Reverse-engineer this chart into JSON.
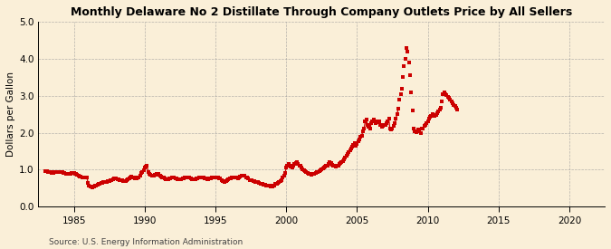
{
  "title": "Monthly Delaware No 2 Distillate Through Company Outlets Price by All Sellers",
  "ylabel": "Dollars per Gallon",
  "source": "Source: U.S. Energy Information Administration",
  "background_color": "#faefd8",
  "line_color": "#cc0000",
  "xlim": [
    1982.5,
    2022.5
  ],
  "ylim": [
    0.0,
    5.0
  ],
  "yticks": [
    0.0,
    1.0,
    2.0,
    3.0,
    4.0,
    5.0
  ],
  "xticks": [
    1985,
    1990,
    1995,
    2000,
    2005,
    2010,
    2015,
    2020
  ],
  "connected_data": [
    [
      1983.0,
      0.97
    ],
    [
      1983.08,
      0.96
    ],
    [
      1983.17,
      0.95
    ],
    [
      1983.25,
      0.94
    ],
    [
      1983.33,
      0.93
    ],
    [
      1983.42,
      0.92
    ],
    [
      1983.5,
      0.93
    ],
    [
      1983.58,
      0.92
    ],
    [
      1983.67,
      0.93
    ],
    [
      1983.75,
      0.94
    ],
    [
      1983.83,
      0.94
    ],
    [
      1983.92,
      0.95
    ],
    [
      1984.0,
      0.95
    ],
    [
      1984.08,
      0.94
    ],
    [
      1984.17,
      0.93
    ],
    [
      1984.25,
      0.92
    ],
    [
      1984.33,
      0.91
    ],
    [
      1984.42,
      0.9
    ],
    [
      1984.5,
      0.89
    ],
    [
      1984.58,
      0.89
    ],
    [
      1984.67,
      0.89
    ],
    [
      1984.75,
      0.9
    ],
    [
      1984.83,
      0.91
    ],
    [
      1984.92,
      0.92
    ],
    [
      1985.0,
      0.91
    ],
    [
      1985.08,
      0.9
    ],
    [
      1985.17,
      0.89
    ],
    [
      1985.25,
      0.86
    ],
    [
      1985.33,
      0.84
    ],
    [
      1985.42,
      0.82
    ],
    [
      1985.5,
      0.81
    ],
    [
      1985.58,
      0.8
    ],
    [
      1985.67,
      0.8
    ],
    [
      1985.75,
      0.8
    ],
    [
      1985.83,
      0.8
    ],
    [
      1985.92,
      0.79
    ],
    [
      1986.0,
      0.65
    ],
    [
      1986.08,
      0.58
    ],
    [
      1986.17,
      0.55
    ],
    [
      1986.25,
      0.54
    ],
    [
      1986.33,
      0.53
    ],
    [
      1986.42,
      0.55
    ],
    [
      1986.5,
      0.57
    ],
    [
      1986.58,
      0.58
    ],
    [
      1986.67,
      0.6
    ],
    [
      1986.75,
      0.62
    ],
    [
      1986.83,
      0.63
    ],
    [
      1986.92,
      0.64
    ],
    [
      1987.0,
      0.65
    ],
    [
      1987.08,
      0.66
    ],
    [
      1987.17,
      0.67
    ],
    [
      1987.25,
      0.68
    ],
    [
      1987.33,
      0.68
    ],
    [
      1987.42,
      0.69
    ],
    [
      1987.5,
      0.7
    ],
    [
      1987.58,
      0.71
    ],
    [
      1987.67,
      0.73
    ],
    [
      1987.75,
      0.74
    ],
    [
      1987.83,
      0.76
    ],
    [
      1987.92,
      0.77
    ],
    [
      1988.0,
      0.76
    ],
    [
      1988.08,
      0.75
    ],
    [
      1988.17,
      0.74
    ],
    [
      1988.25,
      0.73
    ],
    [
      1988.33,
      0.72
    ],
    [
      1988.42,
      0.71
    ],
    [
      1988.5,
      0.7
    ],
    [
      1988.58,
      0.69
    ],
    [
      1988.67,
      0.7
    ],
    [
      1988.75,
      0.72
    ],
    [
      1988.83,
      0.74
    ],
    [
      1988.92,
      0.77
    ],
    [
      1989.0,
      0.8
    ],
    [
      1989.08,
      0.82
    ],
    [
      1989.17,
      0.8
    ],
    [
      1989.25,
      0.78
    ],
    [
      1989.33,
      0.77
    ],
    [
      1989.42,
      0.76
    ],
    [
      1989.5,
      0.78
    ],
    [
      1989.58,
      0.8
    ],
    [
      1989.67,
      0.85
    ],
    [
      1989.75,
      0.92
    ],
    [
      1989.83,
      0.95
    ],
    [
      1989.92,
      0.98
    ],
    [
      1990.0,
      1.05
    ],
    [
      1990.08,
      1.08
    ],
    [
      1990.17,
      1.1
    ],
    [
      1990.25,
      0.95
    ],
    [
      1990.33,
      0.9
    ],
    [
      1990.42,
      0.86
    ],
    [
      1990.5,
      0.84
    ],
    [
      1990.58,
      0.83
    ],
    [
      1990.67,
      0.85
    ],
    [
      1990.75,
      0.87
    ],
    [
      1990.83,
      0.88
    ],
    [
      1990.92,
      0.87
    ],
    [
      1991.0,
      0.88
    ],
    [
      1991.08,
      0.85
    ],
    [
      1991.17,
      0.82
    ],
    [
      1991.25,
      0.8
    ],
    [
      1991.33,
      0.78
    ],
    [
      1991.42,
      0.76
    ],
    [
      1991.5,
      0.75
    ],
    [
      1991.58,
      0.74
    ],
    [
      1991.67,
      0.75
    ],
    [
      1991.75,
      0.76
    ],
    [
      1991.83,
      0.77
    ],
    [
      1991.92,
      0.78
    ],
    [
      1992.0,
      0.79
    ],
    [
      1992.08,
      0.78
    ],
    [
      1992.17,
      0.77
    ],
    [
      1992.25,
      0.76
    ],
    [
      1992.33,
      0.75
    ],
    [
      1992.42,
      0.74
    ],
    [
      1992.5,
      0.74
    ],
    [
      1992.58,
      0.75
    ],
    [
      1992.67,
      0.76
    ],
    [
      1992.75,
      0.77
    ],
    [
      1992.83,
      0.78
    ],
    [
      1992.92,
      0.79
    ],
    [
      1993.0,
      0.8
    ],
    [
      1993.08,
      0.79
    ],
    [
      1993.17,
      0.78
    ],
    [
      1993.25,
      0.76
    ],
    [
      1993.33,
      0.75
    ],
    [
      1993.42,
      0.74
    ],
    [
      1993.5,
      0.74
    ],
    [
      1993.58,
      0.75
    ],
    [
      1993.67,
      0.76
    ],
    [
      1993.75,
      0.77
    ],
    [
      1993.83,
      0.78
    ],
    [
      1993.92,
      0.79
    ],
    [
      1994.0,
      0.8
    ],
    [
      1994.08,
      0.79
    ],
    [
      1994.17,
      0.78
    ],
    [
      1994.25,
      0.77
    ],
    [
      1994.33,
      0.76
    ],
    [
      1994.42,
      0.75
    ],
    [
      1994.5,
      0.75
    ],
    [
      1994.58,
      0.76
    ],
    [
      1994.67,
      0.77
    ],
    [
      1994.75,
      0.78
    ],
    [
      1994.83,
      0.79
    ],
    [
      1994.92,
      0.8
    ],
    [
      1995.0,
      0.8
    ],
    [
      1995.08,
      0.79
    ],
    [
      1995.17,
      0.78
    ],
    [
      1995.25,
      0.77
    ],
    [
      1995.33,
      0.76
    ],
    [
      1995.42,
      0.72
    ],
    [
      1995.5,
      0.7
    ],
    [
      1995.58,
      0.69
    ],
    [
      1995.67,
      0.68
    ],
    [
      1995.75,
      0.7
    ],
    [
      1995.83,
      0.72
    ],
    [
      1995.92,
      0.74
    ],
    [
      1996.0,
      0.76
    ],
    [
      1996.08,
      0.77
    ],
    [
      1996.17,
      0.79
    ],
    [
      1996.25,
      0.8
    ],
    [
      1996.33,
      0.8
    ],
    [
      1996.42,
      0.79
    ],
    [
      1996.5,
      0.78
    ],
    [
      1996.58,
      0.77
    ],
    [
      1996.67,
      0.78
    ],
    [
      1996.75,
      0.82
    ],
    [
      1996.83,
      0.84
    ],
    [
      1996.92,
      0.83
    ],
    [
      1997.0,
      0.85
    ],
    [
      1997.08,
      0.83
    ],
    [
      1997.17,
      0.8
    ],
    [
      1997.25,
      0.78
    ],
    [
      1997.33,
      0.76
    ],
    [
      1997.42,
      0.73
    ],
    [
      1997.5,
      0.72
    ],
    [
      1997.58,
      0.71
    ],
    [
      1997.67,
      0.7
    ],
    [
      1997.75,
      0.69
    ],
    [
      1997.83,
      0.68
    ],
    [
      1997.92,
      0.67
    ],
    [
      1998.0,
      0.67
    ],
    [
      1998.08,
      0.65
    ],
    [
      1998.17,
      0.63
    ],
    [
      1998.25,
      0.62
    ],
    [
      1998.33,
      0.61
    ],
    [
      1998.42,
      0.6
    ],
    [
      1998.5,
      0.59
    ],
    [
      1998.58,
      0.58
    ],
    [
      1998.67,
      0.57
    ],
    [
      1998.75,
      0.56
    ],
    [
      1998.83,
      0.56
    ],
    [
      1998.92,
      0.55
    ],
    [
      1999.0,
      0.55
    ],
    [
      1999.08,
      0.56
    ],
    [
      1999.17,
      0.58
    ],
    [
      1999.25,
      0.61
    ],
    [
      1999.33,
      0.63
    ],
    [
      1999.42,
      0.65
    ],
    [
      1999.5,
      0.67
    ],
    [
      1999.58,
      0.7
    ],
    [
      1999.67,
      0.73
    ],
    [
      1999.75,
      0.78
    ],
    [
      1999.83,
      0.85
    ],
    [
      1999.92,
      0.92
    ],
    [
      2000.0,
      1.05
    ],
    [
      2000.08,
      1.1
    ],
    [
      2000.17,
      1.15
    ],
    [
      2000.25,
      1.1
    ],
    [
      2000.33,
      1.08
    ],
    [
      2000.42,
      1.06
    ],
    [
      2000.5,
      1.1
    ],
    [
      2000.58,
      1.15
    ],
    [
      2000.67,
      1.18
    ],
    [
      2000.75,
      1.2
    ],
    [
      2000.83,
      1.15
    ],
    [
      2000.92,
      1.1
    ],
    [
      2001.0,
      1.1
    ],
    [
      2001.08,
      1.05
    ],
    [
      2001.17,
      1.0
    ],
    [
      2001.25,
      0.98
    ],
    [
      2001.33,
      0.96
    ],
    [
      2001.42,
      0.94
    ],
    [
      2001.5,
      0.92
    ],
    [
      2001.58,
      0.9
    ],
    [
      2001.67,
      0.88
    ],
    [
      2001.75,
      0.87
    ],
    [
      2001.83,
      0.88
    ],
    [
      2001.92,
      0.89
    ],
    [
      2002.0,
      0.9
    ],
    [
      2002.08,
      0.91
    ],
    [
      2002.17,
      0.93
    ],
    [
      2002.25,
      0.95
    ],
    [
      2002.33,
      0.97
    ],
    [
      2002.42,
      0.99
    ],
    [
      2002.5,
      1.0
    ],
    [
      2002.58,
      1.03
    ],
    [
      2002.67,
      1.05
    ],
    [
      2002.75,
      1.08
    ],
    [
      2002.83,
      1.1
    ],
    [
      2002.92,
      1.12
    ],
    [
      2003.0,
      1.15
    ],
    [
      2003.08,
      1.2
    ],
    [
      2003.17,
      1.18
    ],
    [
      2003.25,
      1.14
    ],
    [
      2003.33,
      1.12
    ],
    [
      2003.42,
      1.1
    ],
    [
      2003.5,
      1.09
    ],
    [
      2003.58,
      1.1
    ],
    [
      2003.67,
      1.12
    ],
    [
      2003.75,
      1.15
    ],
    [
      2003.83,
      1.18
    ],
    [
      2003.92,
      1.2
    ],
    [
      2004.0,
      1.22
    ],
    [
      2004.08,
      1.27
    ],
    [
      2004.17,
      1.32
    ],
    [
      2004.25,
      1.37
    ],
    [
      2004.33,
      1.42
    ],
    [
      2004.42,
      1.47
    ],
    [
      2004.5,
      1.52
    ],
    [
      2004.58,
      1.57
    ],
    [
      2004.67,
      1.62
    ],
    [
      2004.75,
      1.67
    ],
    [
      2004.83,
      1.72
    ],
    [
      2004.92,
      1.65
    ],
    [
      2005.0,
      1.7
    ],
    [
      2005.08,
      1.76
    ],
    [
      2005.17,
      1.82
    ],
    [
      2005.25,
      1.88
    ],
    [
      2005.33,
      1.92
    ],
    [
      2005.42,
      2.05
    ],
    [
      2005.5,
      2.1
    ],
    [
      2005.58,
      2.3
    ],
    [
      2005.67,
      2.35
    ],
    [
      2005.75,
      2.2
    ],
    [
      2005.83,
      2.15
    ],
    [
      2005.92,
      2.1
    ],
    [
      2006.0,
      2.25
    ],
    [
      2006.08,
      2.32
    ],
    [
      2006.17,
      2.36
    ],
    [
      2006.25,
      2.3
    ],
    [
      2006.33,
      2.25
    ],
    [
      2006.42,
      2.28
    ],
    [
      2006.5,
      2.32
    ],
    [
      2006.58,
      2.3
    ],
    [
      2006.67,
      2.2
    ],
    [
      2006.75,
      2.15
    ],
    [
      2006.83,
      2.18
    ],
    [
      2006.92,
      2.22
    ],
    [
      2007.0,
      2.22
    ],
    [
      2007.08,
      2.27
    ],
    [
      2007.17,
      2.32
    ],
    [
      2007.25,
      2.37
    ],
    [
      2007.33,
      2.1
    ],
    [
      2007.42,
      2.08
    ],
    [
      2007.5,
      2.12
    ],
    [
      2007.58,
      2.18
    ],
    [
      2007.67,
      2.25
    ],
    [
      2007.75,
      2.38
    ],
    [
      2007.83,
      2.5
    ],
    [
      2007.92,
      2.65
    ]
  ],
  "scatter_data": [
    [
      2008.0,
      2.9
    ],
    [
      2008.08,
      3.05
    ],
    [
      2008.17,
      3.2
    ],
    [
      2008.25,
      3.5
    ],
    [
      2008.33,
      3.8
    ],
    [
      2008.42,
      4.0
    ],
    [
      2008.5,
      4.3
    ],
    [
      2008.58,
      4.2
    ],
    [
      2008.67,
      3.9
    ],
    [
      2008.75,
      3.55
    ],
    [
      2008.83,
      3.1
    ],
    [
      2008.92,
      2.6
    ],
    [
      2009.0,
      2.1
    ],
    [
      2009.08,
      2.05
    ],
    [
      2009.17,
      2.02
    ],
    [
      2009.25,
      2.05
    ],
    [
      2009.33,
      2.08
    ],
    [
      2009.42,
      2.05
    ],
    [
      2009.5,
      2.0
    ],
    [
      2009.58,
      2.1
    ],
    [
      2009.67,
      2.12
    ],
    [
      2009.75,
      2.18
    ],
    [
      2009.83,
      2.2
    ],
    [
      2009.92,
      2.25
    ],
    [
      2010.0,
      2.32
    ],
    [
      2010.08,
      2.38
    ],
    [
      2010.17,
      2.42
    ],
    [
      2010.25,
      2.46
    ],
    [
      2010.33,
      2.5
    ],
    [
      2010.42,
      2.48
    ],
    [
      2010.5,
      2.45
    ],
    [
      2010.58,
      2.48
    ],
    [
      2010.67,
      2.52
    ],
    [
      2010.75,
      2.57
    ],
    [
      2010.83,
      2.62
    ],
    [
      2010.92,
      2.68
    ],
    [
      2011.0,
      2.85
    ],
    [
      2011.08,
      3.05
    ],
    [
      2011.17,
      3.08
    ],
    [
      2011.25,
      3.05
    ],
    [
      2011.33,
      3.02
    ],
    [
      2011.42,
      2.98
    ],
    [
      2011.5,
      2.95
    ],
    [
      2011.58,
      2.9
    ],
    [
      2011.67,
      2.85
    ],
    [
      2011.75,
      2.8
    ],
    [
      2011.83,
      2.75
    ],
    [
      2011.92,
      2.72
    ],
    [
      2012.0,
      2.68
    ],
    [
      2012.08,
      2.62
    ]
  ]
}
